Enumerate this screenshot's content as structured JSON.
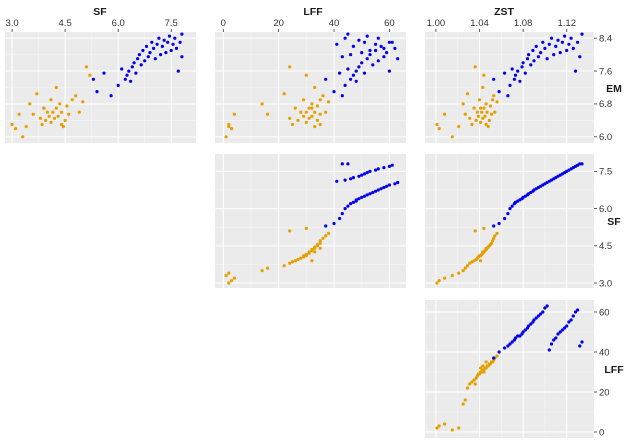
{
  "chart_data": {
    "type": "scatter",
    "title": "",
    "variables": [
      "SF",
      "LFF",
      "ZST",
      "EM"
    ],
    "column_labels": [
      "SF",
      "LFF",
      "ZST"
    ],
    "row_labels": [
      "EM",
      "SF",
      "LFF"
    ],
    "grid": true,
    "groups": [
      {
        "name": "",
        "color": "#E69F00"
      },
      {
        "name": "",
        "color": "#0000EE"
      }
    ],
    "axes": {
      "SF": {
        "range": [
          2.8,
          8.2
        ],
        "ticks": [
          3.0,
          4.5,
          6.0,
          7.5
        ],
        "tick_labels": [
          "3.0",
          "4.5",
          "6.0",
          "7.5"
        ]
      },
      "LFF": {
        "range": [
          -3,
          66
        ],
        "ticks": [
          0,
          20,
          40,
          60
        ],
        "tick_labels": [
          "0",
          "20",
          "40",
          "60"
        ]
      },
      "ZST": {
        "range": [
          0.99,
          1.145
        ],
        "ticks": [
          1.0,
          1.04,
          1.08,
          1.12
        ],
        "tick_labels": [
          "1.00",
          "1.04",
          "1.08",
          "1.12"
        ]
      },
      "EM": {
        "range": [
          5.85,
          8.55
        ],
        "ticks": [
          6.0,
          6.8,
          7.6,
          8.4
        ],
        "tick_labels": [
          "6.0",
          "6.8",
          "7.6",
          "8.4"
        ]
      }
    },
    "panels": [
      {
        "x": "SF",
        "y": "EM"
      },
      {
        "x": "LFF",
        "y": "EM"
      },
      {
        "x": "ZST",
        "y": "EM"
      },
      {
        "x": "LFF",
        "y": "SF"
      },
      {
        "x": "ZST",
        "y": "SF"
      },
      {
        "x": "ZST",
        "y": "LFF"
      }
    ],
    "points": {
      "group0": {
        "SF": [
          3.0,
          3.1,
          3.2,
          3.3,
          3.4,
          3.5,
          3.6,
          3.7,
          3.8,
          3.85,
          3.9,
          3.95,
          4.0,
          4.05,
          4.1,
          4.1,
          4.15,
          4.2,
          4.25,
          4.3,
          4.35,
          4.4,
          4.45,
          4.5,
          4.55,
          4.6,
          4.7,
          4.8,
          4.9,
          5.0,
          5.1,
          5.2,
          4.25,
          4.4,
          3.9
        ],
        "LFF": [
          2,
          3,
          4,
          1,
          2,
          14,
          16,
          22,
          24,
          25,
          26,
          27,
          28,
          29,
          29,
          30,
          30,
          31,
          31,
          32,
          32,
          33,
          33,
          34,
          34,
          35,
          35,
          36,
          37,
          38,
          24,
          30,
          33,
          35,
          32
        ],
        "ZST": [
          1.001,
          1.003,
          1.008,
          1.015,
          1.021,
          1.025,
          1.027,
          1.029,
          1.031,
          1.033,
          1.035,
          1.037,
          1.038,
          1.039,
          1.04,
          1.041,
          1.042,
          1.043,
          1.044,
          1.045,
          1.046,
          1.047,
          1.048,
          1.049,
          1.05,
          1.051,
          1.052,
          1.053,
          1.054,
          1.056,
          1.036,
          1.044,
          1.043,
          1.046,
          1.041
        ],
        "EM": [
          6.3,
          6.2,
          6.55,
          6.0,
          6.25,
          6.8,
          6.55,
          7.05,
          6.45,
          6.3,
          6.7,
          6.4,
          6.6,
          6.5,
          6.9,
          6.35,
          6.6,
          6.45,
          6.7,
          6.5,
          6.8,
          6.6,
          6.25,
          6.4,
          6.75,
          6.55,
          6.9,
          7.0,
          6.6,
          6.85,
          7.7,
          7.5,
          7.2,
          6.3,
          6.7
        ]
      },
      "group1": {
        "SF": [
          5.3,
          5.4,
          5.6,
          5.8,
          6.0,
          6.1,
          6.2,
          6.25,
          6.3,
          6.35,
          6.4,
          6.45,
          6.5,
          6.55,
          6.6,
          6.65,
          6.7,
          6.75,
          6.8,
          6.85,
          6.9,
          6.95,
          7.0,
          7.05,
          7.1,
          7.15,
          7.2,
          7.25,
          7.3,
          7.35,
          7.4,
          7.45,
          7.5,
          7.55,
          7.6,
          7.65,
          7.7,
          7.75,
          7.8,
          7.8
        ],
        "LFF": [
          37,
          40,
          42,
          43,
          44,
          45,
          46,
          47,
          48,
          48,
          49,
          50,
          51,
          52,
          53,
          54,
          55,
          56,
          57,
          58,
          59,
          60,
          62,
          63,
          41,
          44,
          46,
          47,
          49,
          50,
          51,
          52,
          53,
          55,
          56,
          58,
          60,
          61,
          43,
          45
        ],
        "ZST": [
          1.053,
          1.058,
          1.063,
          1.066,
          1.068,
          1.07,
          1.072,
          1.073,
          1.075,
          1.077,
          1.079,
          1.08,
          1.082,
          1.084,
          1.085,
          1.087,
          1.089,
          1.09,
          1.092,
          1.094,
          1.096,
          1.098,
          1.1,
          1.102,
          1.104,
          1.106,
          1.108,
          1.11,
          1.112,
          1.114,
          1.116,
          1.118,
          1.12,
          1.122,
          1.124,
          1.126,
          1.128,
          1.13,
          1.132,
          1.134
        ],
        "EM": [
          7.4,
          7.1,
          7.55,
          7.0,
          7.25,
          7.65,
          7.4,
          7.5,
          7.6,
          7.35,
          7.7,
          7.8,
          7.55,
          7.9,
          8.0,
          7.75,
          8.1,
          7.85,
          8.2,
          7.95,
          8.05,
          8.3,
          8.15,
          7.9,
          8.25,
          8.4,
          8.0,
          8.2,
          8.35,
          8.05,
          8.3,
          8.45,
          8.1,
          8.25,
          8.4,
          8.15,
          7.6,
          8.3,
          7.95,
          8.5
        ]
      }
    }
  }
}
